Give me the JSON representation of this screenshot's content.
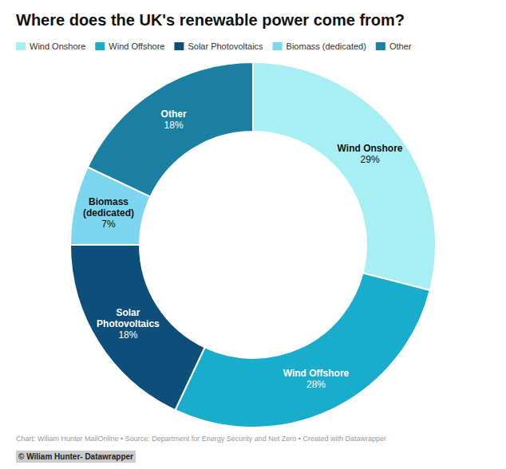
{
  "chart_data": {
    "type": "donut",
    "title": "Where does the UK's renewable power come from?",
    "categories": [
      "Wind Onshore",
      "Wind Offshore",
      "Solar Photovoltaics",
      "Biomass (dedicated)",
      "Other"
    ],
    "values": [
      29,
      28,
      18,
      7,
      18
    ],
    "value_labels": [
      "29%",
      "28%",
      "18%",
      "7%",
      "18%"
    ],
    "colors": [
      "#a8eef5",
      "#1aaccc",
      "#0d4f7a",
      "#7dd6f0",
      "#1a7fa0"
    ],
    "data_labels": true,
    "legend": "upper left",
    "annotations": [
      "Chart: Wiliam Hunter MailOnline • Source: Department for Energy Security and Net Zero • Created with Datawrapper",
      "© Wiliam Hunter- Datawrapper"
    ]
  }
}
